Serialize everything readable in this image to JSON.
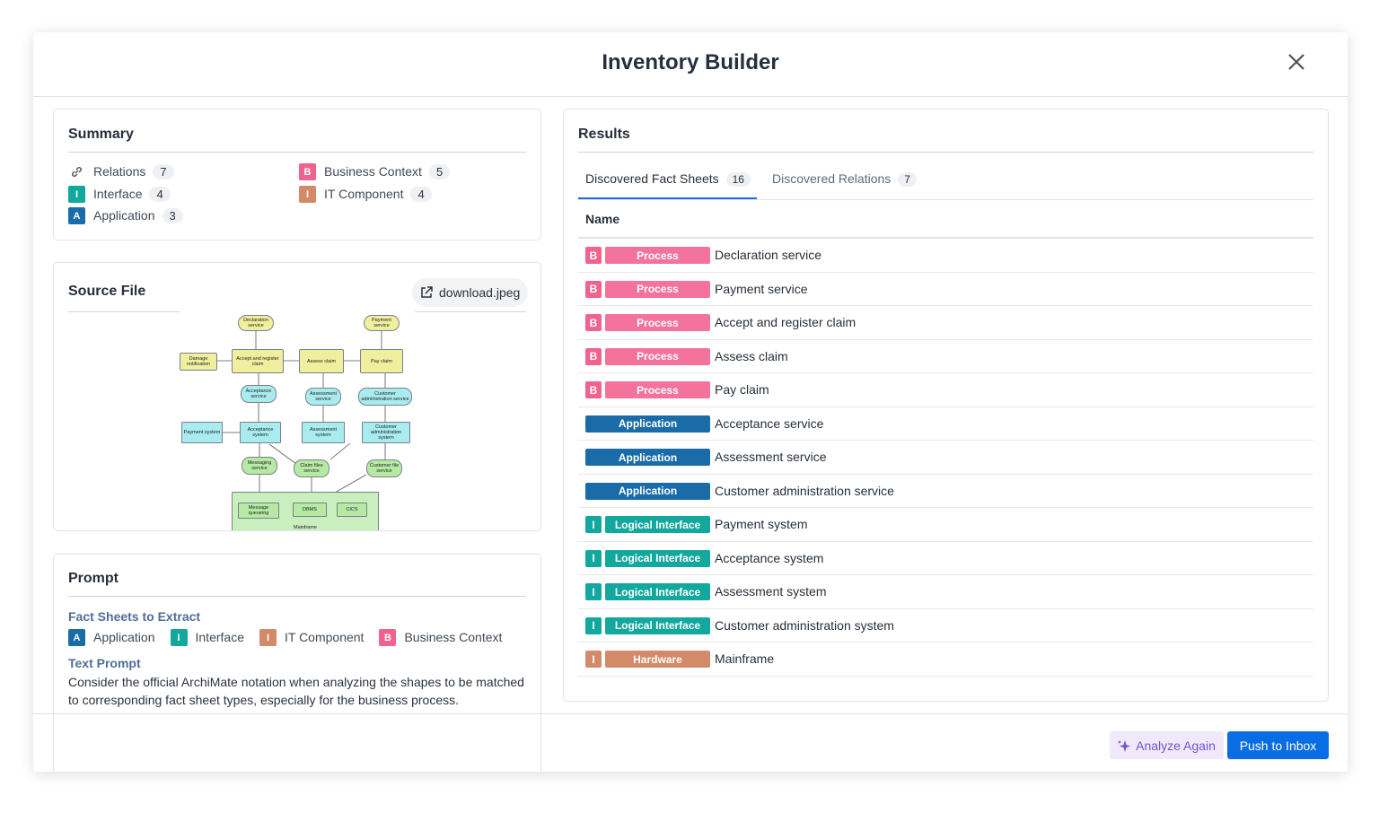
{
  "header": {
    "title": "Inventory Builder"
  },
  "summary": {
    "title": "Summary",
    "items": [
      {
        "label": "Relations",
        "count": 7
      },
      {
        "badge": "I",
        "label": "Interface",
        "count": 4,
        "color": "#12a89d"
      },
      {
        "badge": "A",
        "label": "Application",
        "count": 3,
        "color": "#1a6ca8"
      },
      {
        "badge": "B",
        "label": "Business Context",
        "count": 5,
        "color": "#f0638c"
      },
      {
        "badge": "I",
        "label": "IT Component",
        "count": 4,
        "color": "#d38a68"
      }
    ]
  },
  "source_file": {
    "title": "Source File",
    "file": "download.jpeg",
    "diagram": {
      "nodes": [
        "Declaration service",
        "Payment service",
        "Damage notification",
        "Accept and register claim",
        "Assess claim",
        "Pay claim",
        "Acceptance service",
        "Assessment service",
        "Customer administration service",
        "Payment system",
        "Acceptance system",
        "Assessment system",
        "Customer administration system",
        "Messaging service",
        "Claim files service",
        "Customer file service",
        "Mainframe",
        "Message queueing",
        "DBMS",
        "CICS"
      ]
    }
  },
  "prompt": {
    "title": "Prompt",
    "section": "Fact Sheets to Extract",
    "items": [
      {
        "badge": "A",
        "label": "Application",
        "color": "#1a6ca8"
      },
      {
        "badge": "I",
        "label": "Interface",
        "color": "#12a89d"
      },
      {
        "badge": "I",
        "label": "IT Component",
        "color": "#d38a68"
      },
      {
        "badge": "B",
        "label": "Business Context",
        "color": "#f0638c"
      }
    ],
    "text_heading": "Text Prompt",
    "text": "Consider the official ArchiMate notation when analyzing the shapes to be matched to corresponding fact sheet types, especially for the business process."
  },
  "results": {
    "title": "Results",
    "tabs": [
      {
        "label": "Discovered Fact Sheets",
        "count": 16
      },
      {
        "label": "Discovered Relations",
        "count": 7
      }
    ],
    "column": "Name",
    "rows": [
      {
        "badge": "B",
        "type": "Process",
        "name": "Declaration service",
        "badge_color": "#f0638c",
        "type_color": "#f3739c"
      },
      {
        "badge": "B",
        "type": "Process",
        "name": "Payment service",
        "badge_color": "#f0638c",
        "type_color": "#f3739c"
      },
      {
        "badge": "B",
        "type": "Process",
        "name": "Accept and register claim",
        "badge_color": "#f0638c",
        "type_color": "#f3739c"
      },
      {
        "badge": "B",
        "type": "Process",
        "name": "Assess claim",
        "badge_color": "#f0638c",
        "type_color": "#f3739c"
      },
      {
        "badge": "B",
        "type": "Process",
        "name": "Pay claim",
        "badge_color": "#f0638c",
        "type_color": "#f3739c"
      },
      {
        "type": "Application",
        "name": "Acceptance service",
        "type_color": "#1a6ca8"
      },
      {
        "type": "Application",
        "name": "Assessment service",
        "type_color": "#1a6ca8"
      },
      {
        "type": "Application",
        "name": "Customer administration service",
        "type_color": "#1a6ca8"
      },
      {
        "badge": "I",
        "type": "Logical Interface",
        "name": "Payment system",
        "badge_color": "#12a89d",
        "type_color": "#12a89d"
      },
      {
        "badge": "I",
        "type": "Logical Interface",
        "name": "Acceptance system",
        "badge_color": "#12a89d",
        "type_color": "#12a89d"
      },
      {
        "badge": "I",
        "type": "Logical Interface",
        "name": "Assessment system",
        "badge_color": "#12a89d",
        "type_color": "#12a89d"
      },
      {
        "badge": "I",
        "type": "Logical Interface",
        "name": "Customer administration system",
        "badge_color": "#12a89d",
        "type_color": "#12a89d"
      },
      {
        "badge": "I",
        "type": "Hardware",
        "name": "Mainframe",
        "badge_color": "#d38a68",
        "type_color": "#d38a68"
      }
    ]
  },
  "footer": {
    "secondary": "Analyze Again",
    "primary": "Push to Inbox"
  }
}
